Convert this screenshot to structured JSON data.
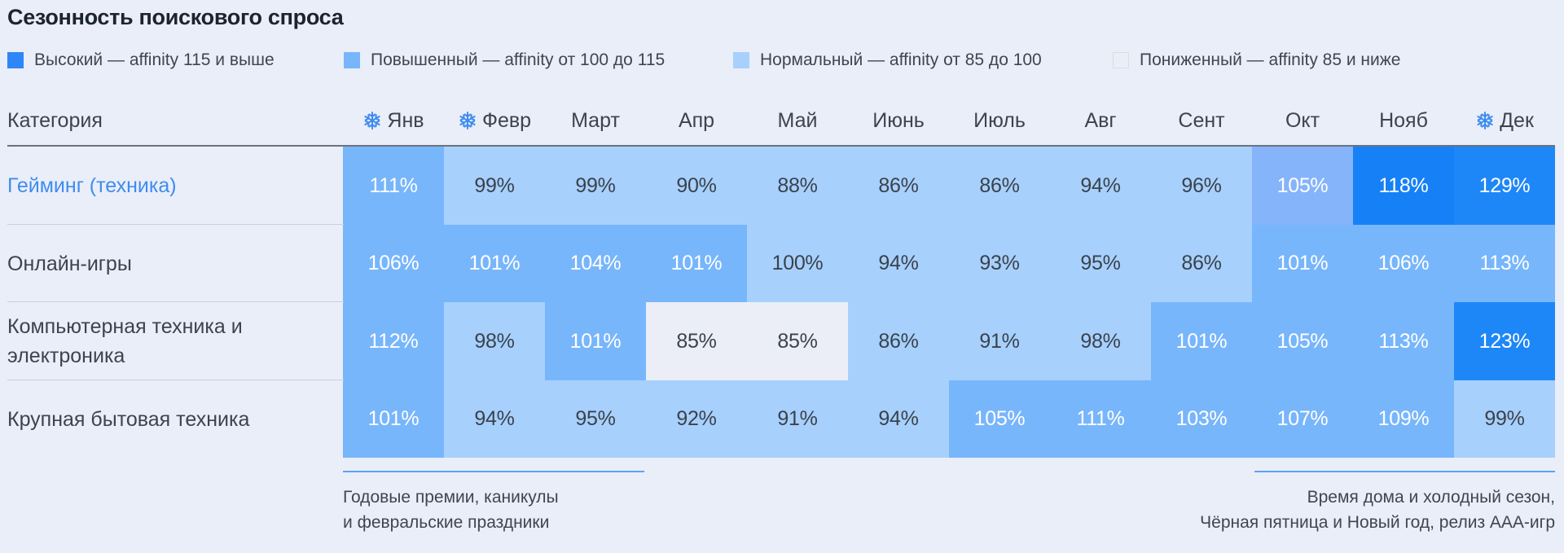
{
  "title": "Сезонность поискового спроса",
  "legend": [
    {
      "label": "Высокий — affinity 115 и выше",
      "color": "#2f86f6"
    },
    {
      "label": "Повышенный — affinity от 100 до 115",
      "color": "#78b6fb"
    },
    {
      "label": "Нормальный — affinity от 85 до 100",
      "color": "#a7d0fd"
    },
    {
      "label": "Пониженный — affinity 85 и ниже",
      "color": "#ebeef6"
    }
  ],
  "header": {
    "category_label": "Категория",
    "months": [
      {
        "label": "Янв",
        "icon": "snowflake-icon"
      },
      {
        "label": "Февр",
        "icon": "snowflake-icon"
      },
      {
        "label": "Март",
        "icon": ""
      },
      {
        "label": "Апр",
        "icon": ""
      },
      {
        "label": "Май",
        "icon": ""
      },
      {
        "label": "Июнь",
        "icon": ""
      },
      {
        "label": "Июль",
        "icon": ""
      },
      {
        "label": "Авг",
        "icon": ""
      },
      {
        "label": "Сент",
        "icon": ""
      },
      {
        "label": "Окт",
        "icon": ""
      },
      {
        "label": "Нояб",
        "icon": ""
      },
      {
        "label": "Дек",
        "icon": "snowflake-icon"
      }
    ]
  },
  "chart_data": {
    "type": "heatmap",
    "title": "Сезонность поискового спроса",
    "x": [
      "Янв",
      "Февр",
      "Март",
      "Апр",
      "Май",
      "Июнь",
      "Июль",
      "Авг",
      "Сент",
      "Окт",
      "Нояб",
      "Дек"
    ],
    "unit": "%",
    "series": [
      {
        "name": "Гейминг (техника)",
        "highlight": true,
        "values": [
          111,
          99,
          99,
          90,
          88,
          86,
          86,
          94,
          96,
          105,
          118,
          129
        ],
        "colors": [
          "#78b6fb",
          "#a7d0fd",
          "#a7d0fd",
          "#a7d0fd",
          "#a7d0fd",
          "#a7d0fd",
          "#a7d0fd",
          "#a7d0fd",
          "#a7d0fd",
          "#86b4fb",
          "#1681f7",
          "#1e87f7"
        ]
      },
      {
        "name": "Онлайн-игры",
        "highlight": false,
        "values": [
          106,
          101,
          104,
          101,
          100,
          94,
          93,
          95,
          86,
          101,
          106,
          113
        ],
        "colors": [
          "#78b6fb",
          "#78b6fb",
          "#78b6fb",
          "#78b6fb",
          "#a7d0fd",
          "#a7d0fd",
          "#a7d0fd",
          "#a7d0fd",
          "#a7d0fd",
          "#78b6fb",
          "#78b6fb",
          "#78b6fb"
        ]
      },
      {
        "name": "Компьютерная техника и электроника",
        "highlight": false,
        "values": [
          112,
          98,
          101,
          85,
          85,
          86,
          91,
          98,
          101,
          105,
          113,
          123
        ],
        "colors": [
          "#78b6fb",
          "#a7d0fd",
          "#78b6fb",
          "#ebeef6",
          "#ebeef6",
          "#a7d0fd",
          "#a7d0fd",
          "#a7d0fd",
          "#78b6fb",
          "#78b6fb",
          "#78b6fb",
          "#1e87f7"
        ]
      },
      {
        "name": "Крупная бытовая техника",
        "highlight": false,
        "values": [
          101,
          94,
          95,
          92,
          91,
          94,
          105,
          111,
          103,
          107,
          109,
          99
        ],
        "colors": [
          "#78b6fb",
          "#a7d0fd",
          "#a7d0fd",
          "#a7d0fd",
          "#a7d0fd",
          "#a7d0fd",
          "#78b6fb",
          "#78b6fb",
          "#78b6fb",
          "#78b6fb",
          "#78b6fb",
          "#a7d0fd"
        ]
      }
    ]
  },
  "annotations": {
    "left": {
      "line1": "Годовые премии, каникулы",
      "line2": "и февральские праздники"
    },
    "right": {
      "line1": "Время дома и холодный сезон,",
      "line2": "Чёрная пятница и Новый год, релиз AAA-игр"
    }
  }
}
